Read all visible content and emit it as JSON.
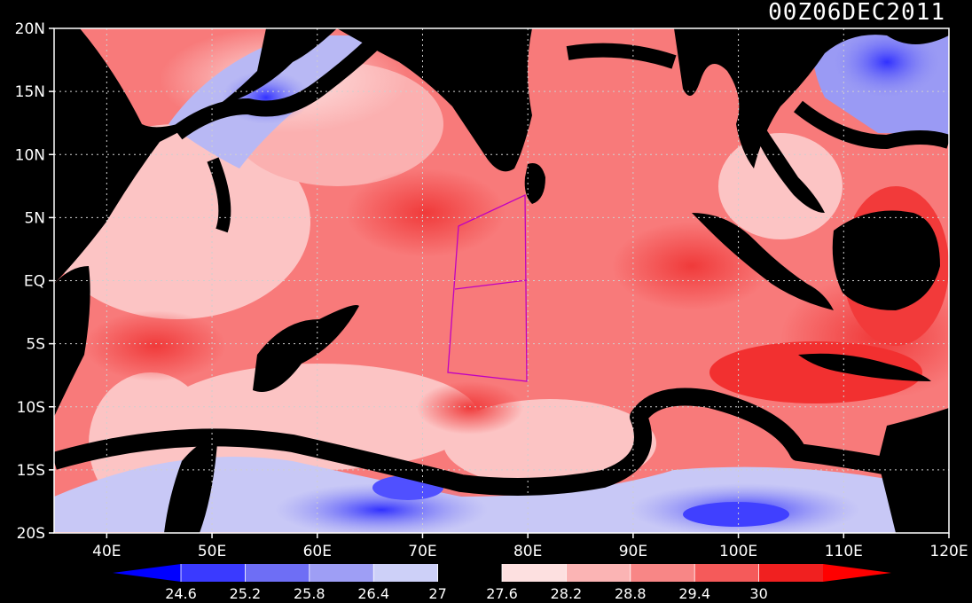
{
  "title": "00Z06DEC2011",
  "map": {
    "lat_labels": [
      "20N",
      "15N",
      "10N",
      "5N",
      "EQ",
      "5S",
      "10S",
      "15S",
      "20S"
    ],
    "lon_labels": [
      "40E",
      "50E",
      "60E",
      "70E",
      "80E",
      "90E",
      "100E",
      "110E",
      "120E"
    ],
    "lon_range": [
      35,
      120
    ],
    "lat_range": [
      -20,
      20
    ],
    "ocean_color": "#f87a7a",
    "land_color": "#000000"
  },
  "colorbar": {
    "labels": [
      "24.6",
      "25.2",
      "25.8",
      "26.4",
      "27",
      "27.6",
      "28.2",
      "28.8",
      "29.4",
      "30"
    ],
    "colors": [
      "#0000ff",
      "#3a3aff",
      "#6e6ef5",
      "#9e9ef5",
      "#cdd0f8",
      "#000000",
      "#fde0e0",
      "#fbb4b4",
      "#f88686",
      "#f55a5a",
      "#f02020",
      "#ff0000"
    ]
  }
}
